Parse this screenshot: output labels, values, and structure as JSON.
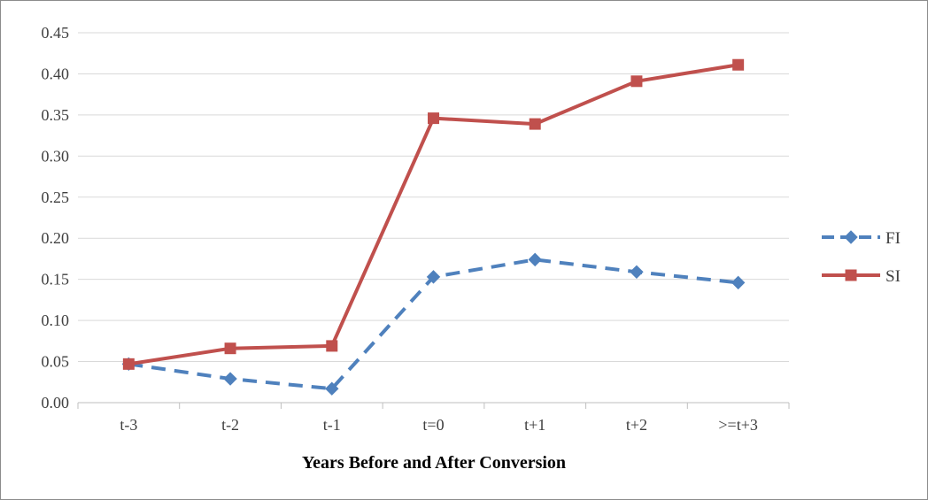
{
  "chart_data": {
    "type": "line",
    "title": "",
    "xlabel": "Years Before and After Conversion",
    "ylabel": "",
    "categories": [
      "t-3",
      "t-2",
      "t-1",
      "t=0",
      "t+1",
      "t+2",
      ">=t+3"
    ],
    "ylim": [
      0,
      0.45
    ],
    "ytick_step": 0.05,
    "yticks": [
      "0.00",
      "0.05",
      "0.10",
      "0.15",
      "0.20",
      "0.25",
      "0.30",
      "0.35",
      "0.40",
      "0.45"
    ],
    "grid": true,
    "legend_position": "right",
    "series": [
      {
        "name": "FI",
        "values": [
          0.047,
          0.029,
          0.017,
          0.153,
          0.174,
          0.159,
          0.146
        ],
        "color": "#4f81bd",
        "line_style": "dashed",
        "marker": "diamond"
      },
      {
        "name": "SI",
        "values": [
          0.047,
          0.066,
          0.069,
          0.346,
          0.339,
          0.391,
          0.411
        ],
        "color": "#c0504d",
        "line_style": "solid",
        "marker": "square"
      }
    ]
  }
}
